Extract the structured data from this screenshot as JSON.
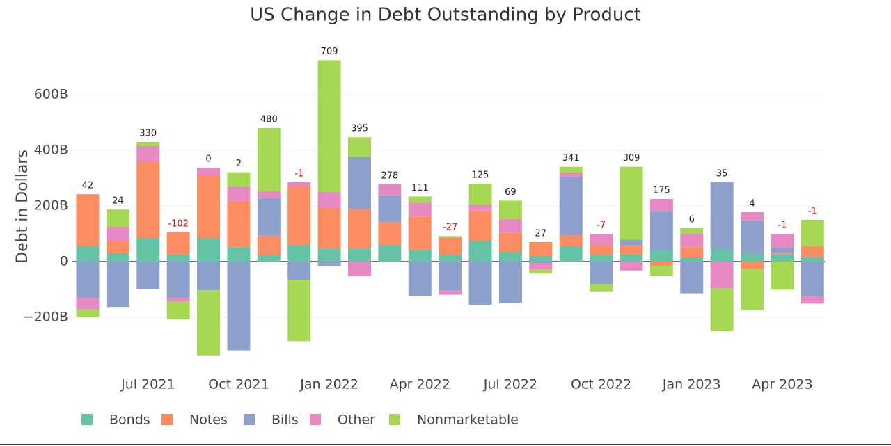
{
  "chart_data": {
    "type": "bar",
    "stacked": true,
    "title": "US Change in Debt Outstanding by Product",
    "y_label": "Debt in Dollars",
    "categories": [
      null,
      null,
      "Jul 2021",
      null,
      null,
      "Oct 2021",
      null,
      null,
      "Jan 2022",
      null,
      null,
      "Apr 2022",
      null,
      null,
      "Jul 2022",
      null,
      null,
      "Oct 2022",
      null,
      null,
      "Jan 2023",
      null,
      null,
      "Apr 2023",
      null
    ],
    "series": [
      {
        "name": "Bonds",
        "color": "#66c2a5",
        "values": [
          55,
          30,
          85,
          27,
          85,
          52,
          25,
          60,
          47,
          47,
          60,
          42,
          25,
          75,
          35,
          20,
          55,
          25,
          27,
          40,
          15,
          45,
          30,
          27,
          17
        ]
      },
      {
        "name": "Notes",
        "color": "#fc8d62",
        "values": [
          187,
          45,
          275,
          78,
          225,
          165,
          68,
          210,
          147,
          142,
          83,
          120,
          62,
          108,
          68,
          50,
          40,
          35,
          32,
          -15,
          37,
          0,
          -25,
          5,
          38
        ]
      },
      {
        "name": "Bills",
        "color": "#8da0cb",
        "values": [
          -130,
          -163,
          -100,
          -130,
          -103,
          -319,
          135,
          -65,
          -15,
          188,
          95,
          -123,
          -104,
          -155,
          -150,
          -5,
          210,
          -80,
          20,
          142,
          -114,
          240,
          118,
          18,
          -125
        ]
      },
      {
        "name": "Other",
        "color": "#e78ac3",
        "values": [
          -42,
          50,
          55,
          -12,
          27,
          52,
          25,
          15,
          57,
          -52,
          40,
          50,
          -15,
          22,
          50,
          -23,
          15,
          40,
          -32,
          43,
          48,
          -95,
          30,
          50,
          -26
        ]
      },
      {
        "name": "Nonmarketable",
        "color": "#a6d854",
        "values": [
          -28,
          62,
          15,
          -65,
          -234,
          52,
          227,
          -221,
          473,
          70,
          0,
          22,
          5,
          75,
          66,
          -15,
          21,
          -27,
          262,
          -35,
          20,
          -155,
          -149,
          -101,
          95
        ]
      }
    ],
    "totals": [
      42,
      24,
      330,
      -102,
      0,
      2,
      480,
      -1,
      709,
      395,
      278,
      111,
      -27,
      125,
      69,
      27,
      341,
      -7,
      309,
      175,
      6,
      35,
      4,
      -1,
      -1
    ],
    "ylim": [
      -350,
      750
    ],
    "yticks": [
      {
        "value": -200,
        "label": "−200B"
      },
      0,
      {
        "value": 200,
        "label": "200B"
      },
      {
        "value": 400,
        "label": "400B"
      },
      {
        "value": 600,
        "label": "600B"
      }
    ],
    "grid": true,
    "legend": "bottom"
  }
}
